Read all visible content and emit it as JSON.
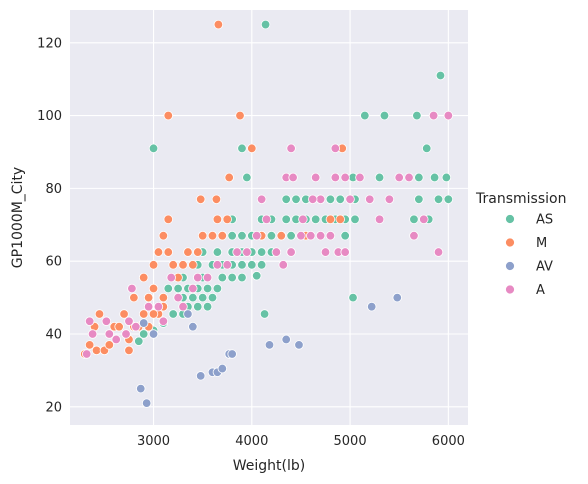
{
  "chart_data": {
    "type": "scatter",
    "title": "",
    "xlabel": "Weight(lb)",
    "ylabel": "GP1000M_City",
    "xlim": [
      2150,
      6200
    ],
    "ylim": [
      15,
      129
    ],
    "xticks": [
      3000,
      4000,
      5000,
      6000
    ],
    "yticks": [
      20,
      40,
      60,
      80,
      100,
      120
    ],
    "grid": true,
    "legend": {
      "title": "Transmission",
      "placement": "right"
    },
    "series": [
      {
        "name": "AS",
        "color": "#66c2a5",
        "points": [
          [
            3000,
            91
          ],
          [
            3900,
            91
          ],
          [
            4140,
            125
          ],
          [
            3950,
            83
          ],
          [
            4130,
            45.5
          ],
          [
            5150,
            100
          ],
          [
            5350,
            100
          ],
          [
            5680,
            100
          ],
          [
            5030,
            83
          ],
          [
            5300,
            83
          ],
          [
            5700,
            83
          ],
          [
            5780,
            91
          ],
          [
            5920,
            111
          ],
          [
            5860,
            83
          ],
          [
            5980,
            83
          ],
          [
            6000,
            77
          ],
          [
            5900,
            77
          ],
          [
            5700,
            77
          ],
          [
            5030,
            50
          ],
          [
            4050,
            56
          ],
          [
            2850,
            38
          ],
          [
            2900,
            40
          ],
          [
            3000,
            41
          ],
          [
            3100,
            43
          ],
          [
            3300,
            45.5
          ],
          [
            3200,
            45.5
          ],
          [
            3350,
            47.5
          ],
          [
            3450,
            47.5
          ],
          [
            3550,
            47.5
          ],
          [
            3300,
            50
          ],
          [
            3400,
            50
          ],
          [
            3500,
            50
          ],
          [
            3600,
            50
          ],
          [
            3150,
            52.5
          ],
          [
            3250,
            52.5
          ],
          [
            3350,
            52.5
          ],
          [
            3450,
            52.5
          ],
          [
            3550,
            52.5
          ],
          [
            3650,
            52.5
          ],
          [
            3300,
            55.5
          ],
          [
            3500,
            55.5
          ],
          [
            3700,
            55.5
          ],
          [
            3800,
            55.5
          ],
          [
            3900,
            55.5
          ],
          [
            3450,
            59
          ],
          [
            3600,
            59
          ],
          [
            3700,
            59
          ],
          [
            3800,
            59
          ],
          [
            3900,
            59
          ],
          [
            4000,
            59
          ],
          [
            4100,
            59
          ],
          [
            3500,
            62.5
          ],
          [
            3650,
            62.5
          ],
          [
            3800,
            62.5
          ],
          [
            3900,
            62.5
          ],
          [
            4000,
            62.5
          ],
          [
            4100,
            62.5
          ],
          [
            4200,
            62.5
          ],
          [
            3700,
            67
          ],
          [
            3800,
            67
          ],
          [
            3900,
            67
          ],
          [
            4000,
            67
          ],
          [
            4100,
            67
          ],
          [
            4200,
            67
          ],
          [
            4300,
            67
          ],
          [
            4400,
            67
          ],
          [
            4950,
            67
          ],
          [
            3800,
            71.5
          ],
          [
            4100,
            71.5
          ],
          [
            4200,
            71.5
          ],
          [
            4350,
            71.5
          ],
          [
            4450,
            71.5
          ],
          [
            4550,
            71.5
          ],
          [
            4650,
            71.5
          ],
          [
            4750,
            71.5
          ],
          [
            4850,
            71.5
          ],
          [
            4950,
            71.5
          ],
          [
            5050,
            71.5
          ],
          [
            4350,
            77
          ],
          [
            4450,
            77
          ],
          [
            4550,
            77
          ],
          [
            4700,
            77
          ],
          [
            4800,
            77
          ],
          [
            4900,
            77
          ],
          [
            5000,
            77
          ],
          [
            5050,
            77
          ],
          [
            5650,
            71.5
          ],
          [
            5800,
            71.5
          ]
        ]
      },
      {
        "name": "M",
        "color": "#fc8d62",
        "points": [
          [
            3660,
            125
          ],
          [
            3150,
            100
          ],
          [
            3880,
            100
          ],
          [
            4000,
            91
          ],
          [
            4920,
            91
          ],
          [
            3480,
            77
          ],
          [
            3640,
            77
          ],
          [
            3770,
            83
          ],
          [
            2300,
            34.5
          ],
          [
            2350,
            37
          ],
          [
            2420,
            35.5
          ],
          [
            2500,
            35.5
          ],
          [
            2550,
            37
          ],
          [
            2400,
            42
          ],
          [
            2600,
            42
          ],
          [
            2450,
            45.5
          ],
          [
            2650,
            42
          ],
          [
            2700,
            45.5
          ],
          [
            2750,
            38.5
          ],
          [
            2800,
            42
          ],
          [
            2750,
            35.5
          ],
          [
            2850,
            42
          ],
          [
            2900,
            45.5
          ],
          [
            2950,
            42
          ],
          [
            2800,
            50
          ],
          [
            2950,
            50
          ],
          [
            2900,
            55.5
          ],
          [
            3000,
            59
          ],
          [
            3000,
            52.5
          ],
          [
            3050,
            45.5
          ],
          [
            3100,
            50
          ],
          [
            3050,
            62.5
          ],
          [
            3150,
            62.5
          ],
          [
            3100,
            67
          ],
          [
            3150,
            71.5
          ],
          [
            3250,
            55.5
          ],
          [
            3200,
            59
          ],
          [
            3300,
            59
          ],
          [
            3400,
            59
          ],
          [
            3350,
            62.5
          ],
          [
            3450,
            62.5
          ],
          [
            3500,
            67
          ],
          [
            3600,
            67
          ],
          [
            3700,
            67
          ],
          [
            3650,
            71.5
          ],
          [
            3750,
            71.5
          ],
          [
            4100,
            67
          ],
          [
            4300,
            67
          ],
          [
            4550,
            67
          ],
          [
            4800,
            71.5
          ],
          [
            4900,
            71.5
          ],
          [
            3100,
            47.5
          ],
          [
            3000,
            45.5
          ]
        ]
      },
      {
        "name": "AV",
        "color": "#8da0cb",
        "points": [
          [
            2870,
            25
          ],
          [
            2930,
            21
          ],
          [
            3480,
            28.5
          ],
          [
            3600,
            29.5
          ],
          [
            3650,
            29.5
          ],
          [
            3700,
            30.5
          ],
          [
            3770,
            34.5
          ],
          [
            3800,
            34.5
          ],
          [
            4180,
            37
          ],
          [
            4350,
            38.5
          ],
          [
            4480,
            37
          ],
          [
            5220,
            47.5
          ],
          [
            5480,
            50
          ],
          [
            2900,
            43
          ],
          [
            3000,
            40
          ],
          [
            3350,
            45.5
          ],
          [
            3400,
            42
          ]
        ]
      },
      {
        "name": "A",
        "color": "#e78ac3",
        "points": [
          [
            2320,
            34.5
          ],
          [
            2350,
            43.5
          ],
          [
            2380,
            40
          ],
          [
            2520,
            43.5
          ],
          [
            2550,
            40
          ],
          [
            2620,
            38.5
          ],
          [
            2720,
            40
          ],
          [
            2750,
            43.5
          ],
          [
            2780,
            52.5
          ],
          [
            2820,
            42
          ],
          [
            2950,
            47.5
          ],
          [
            3050,
            47.5
          ],
          [
            3100,
            43.5
          ],
          [
            3180,
            55.5
          ],
          [
            3250,
            50
          ],
          [
            3300,
            47.5
          ],
          [
            3400,
            52.5
          ],
          [
            3450,
            55.5
          ],
          [
            3550,
            55.5
          ],
          [
            3650,
            59
          ],
          [
            3750,
            59
          ],
          [
            3850,
            62.5
          ],
          [
            3950,
            62.5
          ],
          [
            4050,
            67
          ],
          [
            4100,
            77
          ],
          [
            4150,
            71.5
          ],
          [
            4250,
            62.5
          ],
          [
            4320,
            59
          ],
          [
            4400,
            62.5
          ],
          [
            4500,
            67
          ],
          [
            4600,
            67
          ],
          [
            4700,
            67
          ],
          [
            4750,
            62.5
          ],
          [
            4800,
            67
          ],
          [
            4880,
            62.5
          ],
          [
            4950,
            62.5
          ],
          [
            4350,
            83
          ],
          [
            4420,
            83
          ],
          [
            4650,
            83
          ],
          [
            4700,
            77
          ],
          [
            4850,
            83
          ],
          [
            4950,
            83
          ],
          [
            5100,
            83
          ],
          [
            5200,
            77
          ],
          [
            5400,
            77
          ],
          [
            5500,
            83
          ],
          [
            5600,
            83
          ],
          [
            4400,
            91
          ],
          [
            4850,
            91
          ],
          [
            5000,
            77
          ],
          [
            5300,
            71.5
          ],
          [
            5750,
            71.5
          ],
          [
            5850,
            100
          ],
          [
            6000,
            100
          ],
          [
            5900,
            62.5
          ],
          [
            5650,
            67
          ],
          [
            4620,
            77
          ],
          [
            4520,
            71.5
          ]
        ]
      }
    ]
  }
}
